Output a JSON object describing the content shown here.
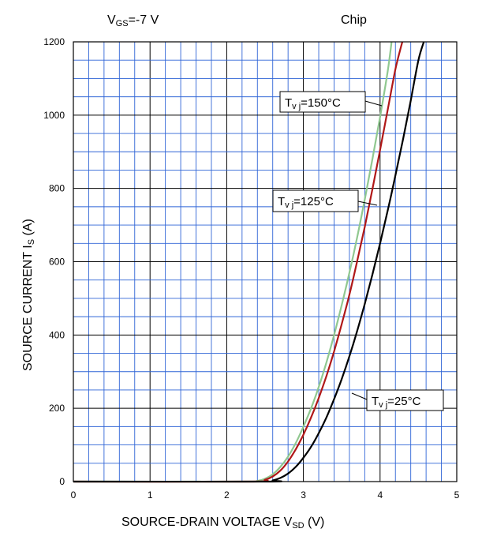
{
  "chart_data": {
    "type": "line",
    "header_left": {
      "main": "V",
      "sub": "GS",
      "rest": "=-7 V"
    },
    "header_right": "Chip",
    "xlabel": {
      "main": "SOURCE-DRAIN VOLTAGE    V",
      "sub": "SD",
      "rest": "   (V)"
    },
    "ylabel": {
      "main": "SOURCE CURRENT    I",
      "sub": "S",
      "rest": "   (A)"
    },
    "xlim": [
      0,
      5
    ],
    "ylim": [
      0,
      1200
    ],
    "x_ticks": [
      "0",
      "1",
      "2",
      "3",
      "4",
      "5"
    ],
    "y_ticks": [
      "0",
      "200",
      "400",
      "600",
      "800",
      "1000",
      "1200"
    ],
    "grid": true,
    "series": [
      {
        "name": "Tvj=150°C",
        "label": {
          "main": "T",
          "sub": "v j",
          "rest": "=150°C"
        },
        "color": "#90c890",
        "points": [
          [
            0,
            0
          ],
          [
            2.2,
            0
          ],
          [
            2.4,
            2
          ],
          [
            2.5,
            8
          ],
          [
            2.6,
            20
          ],
          [
            2.7,
            40
          ],
          [
            2.8,
            68
          ],
          [
            2.9,
            105
          ],
          [
            3.0,
            150
          ],
          [
            3.1,
            200
          ],
          [
            3.2,
            258
          ],
          [
            3.3,
            325
          ],
          [
            3.4,
            400
          ],
          [
            3.5,
            482
          ],
          [
            3.6,
            570
          ],
          [
            3.7,
            665
          ],
          [
            3.8,
            770
          ],
          [
            3.9,
            880
          ],
          [
            4.0,
            995
          ],
          [
            4.1,
            1120
          ],
          [
            4.15,
            1200
          ]
        ]
      },
      {
        "name": "Tvj=125°C",
        "label": {
          "main": "T",
          "sub": "v j",
          "rest": "=125°C"
        },
        "color": "#b01818",
        "points": [
          [
            0,
            0
          ],
          [
            2.3,
            0
          ],
          [
            2.5,
            5
          ],
          [
            2.6,
            14
          ],
          [
            2.7,
            30
          ],
          [
            2.8,
            55
          ],
          [
            2.9,
            88
          ],
          [
            3.0,
            128
          ],
          [
            3.1,
            175
          ],
          [
            3.2,
            228
          ],
          [
            3.3,
            288
          ],
          [
            3.4,
            355
          ],
          [
            3.5,
            430
          ],
          [
            3.6,
            510
          ],
          [
            3.7,
            600
          ],
          [
            3.8,
            695
          ],
          [
            3.9,
            798
          ],
          [
            4.0,
            905
          ],
          [
            4.1,
            1015
          ],
          [
            4.2,
            1125
          ],
          [
            4.29,
            1200
          ]
        ]
      },
      {
        "name": "Tvj=25°C",
        "label": {
          "main": "T",
          "sub": "v j",
          "rest": "=25°C"
        },
        "color": "#000000",
        "points": [
          [
            0,
            0
          ],
          [
            2.5,
            0
          ],
          [
            2.6,
            3
          ],
          [
            2.7,
            10
          ],
          [
            2.8,
            22
          ],
          [
            2.9,
            40
          ],
          [
            3.0,
            65
          ],
          [
            3.1,
            95
          ],
          [
            3.2,
            132
          ],
          [
            3.3,
            175
          ],
          [
            3.4,
            225
          ],
          [
            3.5,
            280
          ],
          [
            3.6,
            342
          ],
          [
            3.7,
            410
          ],
          [
            3.8,
            485
          ],
          [
            3.9,
            565
          ],
          [
            4.0,
            650
          ],
          [
            4.1,
            740
          ],
          [
            4.2,
            835
          ],
          [
            4.3,
            935
          ],
          [
            4.4,
            1040
          ],
          [
            4.5,
            1150
          ],
          [
            4.57,
            1200
          ]
        ]
      }
    ]
  }
}
